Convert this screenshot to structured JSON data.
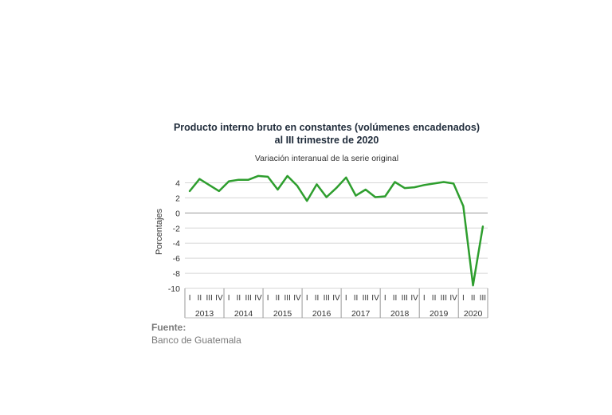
{
  "chart_data": {
    "type": "line",
    "title_line1": "Producto interno bruto en constantes (volúmenes encadenados)",
    "title_line2": "al III trimestre de 2020",
    "subtitle": "Variación interanual de la serie original",
    "ylabel": "Porcentajes",
    "xlabel": "",
    "ylim": [
      -10,
      5
    ],
    "yticks": [
      4,
      2,
      0,
      -2,
      -4,
      -6,
      -8,
      -10
    ],
    "grid": true,
    "series_color": "#2e9e2e",
    "years": [
      "2013",
      "2014",
      "2015",
      "2016",
      "2017",
      "2018",
      "2019",
      "2020"
    ],
    "quarter_labels": [
      "I",
      "II",
      "III",
      "IV"
    ],
    "quarters_per_year": [
      4,
      4,
      4,
      4,
      4,
      4,
      4,
      3
    ],
    "series": [
      {
        "values": [
          2.9,
          4.5,
          3.7,
          2.9,
          4.2,
          4.4,
          4.4,
          4.9,
          4.8,
          3.1,
          4.9,
          3.6,
          1.6,
          3.8,
          2.1,
          3.3,
          4.7,
          2.3,
          3.1,
          2.1,
          2.2,
          4.1,
          3.3,
          3.4,
          3.7,
          3.9,
          4.1,
          3.9,
          0.9,
          -9.6,
          -1.8
        ]
      }
    ]
  },
  "source": {
    "label": "Fuente:",
    "value": "Banco de Guatemala"
  }
}
